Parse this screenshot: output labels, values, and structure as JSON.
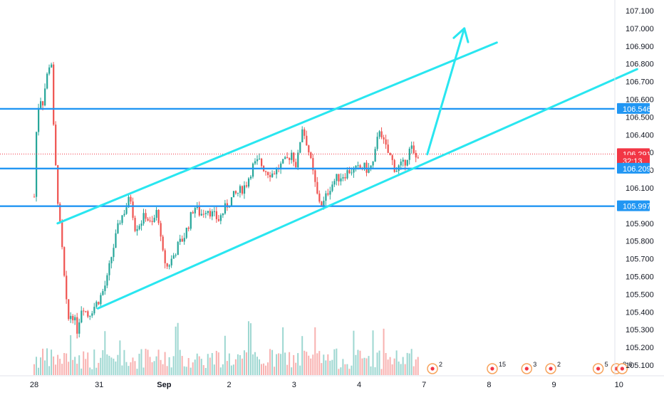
{
  "chart_data": {
    "type": "candlestick",
    "symbol_palette": {
      "up": "#26a69a",
      "down": "#ef5350",
      "level_line": "#2196f3",
      "channel_line": "#29e6f0",
      "current_price": "#f23645",
      "background": "#ffffff"
    },
    "y_axis": {
      "ylim": [
        105.04,
        107.16
      ],
      "ticks": [
        "107.100",
        "107.000",
        "106.900",
        "106.800",
        "106.700",
        "106.600",
        "106.500",
        "106.400",
        "106.300",
        "106.200",
        "106.100",
        "105.900",
        "105.800",
        "105.700",
        "105.600",
        "105.500",
        "105.400",
        "105.300",
        "105.200",
        "105.100"
      ]
    },
    "x_axis": {
      "labels": [
        {
          "text": "28",
          "day": 0
        },
        {
          "text": "31",
          "day": 1
        },
        {
          "text": "Sep",
          "day": 2
        },
        {
          "text": "2",
          "day": 3
        },
        {
          "text": "3",
          "day": 4
        },
        {
          "text": "4",
          "day": 5
        },
        {
          "text": "7",
          "day": 6
        },
        {
          "text": "8",
          "day": 7
        },
        {
          "text": "9",
          "day": 8
        },
        {
          "text": "10",
          "day": 9
        }
      ]
    },
    "price_tags": [
      {
        "label": "106.546",
        "price": 106.546,
        "kind": "level"
      },
      {
        "label": "106.291",
        "price": 106.291,
        "kind": "current"
      },
      {
        "label": "32:13",
        "price": 106.253,
        "kind": "countdown"
      },
      {
        "label": "106.209",
        "price": 106.209,
        "kind": "level"
      },
      {
        "label": "105.997",
        "price": 105.997,
        "kind": "level"
      }
    ],
    "horizontal_levels": [
      106.546,
      106.209,
      105.997
    ],
    "current_price": 106.291,
    "trend_lines": [
      {
        "name": "channel-top",
        "from": {
          "day": 0.36,
          "price": 105.9
        },
        "to": {
          "day": 7.12,
          "price": 106.92
        }
      },
      {
        "name": "channel-bottom",
        "from": {
          "day": 0.98,
          "price": 105.42
        },
        "to": {
          "day": 9.28,
          "price": 106.77
        }
      }
    ],
    "projection_arrow": {
      "from": {
        "day": 6.05,
        "price": 106.29
      },
      "to": {
        "day": 6.62,
        "price": 107.0
      }
    },
    "candles_key_points": [
      [
        0.0,
        106.05
      ],
      [
        0.02,
        106.35
      ],
      [
        0.05,
        106.5
      ],
      [
        0.08,
        106.62
      ],
      [
        0.13,
        106.58
      ],
      [
        0.18,
        106.7
      ],
      [
        0.26,
        106.85
      ],
      [
        0.3,
        106.4
      ],
      [
        0.34,
        106.15
      ],
      [
        0.38,
        105.95
      ],
      [
        0.44,
        105.7
      ],
      [
        0.48,
        105.5
      ],
      [
        0.52,
        105.35
      ],
      [
        0.58,
        105.4
      ],
      [
        0.66,
        105.3
      ],
      [
        0.74,
        105.45
      ],
      [
        0.82,
        105.38
      ],
      [
        0.9,
        105.42
      ],
      [
        0.96,
        105.45
      ],
      [
        1.04,
        105.5
      ],
      [
        1.12,
        105.58
      ],
      [
        1.18,
        105.7
      ],
      [
        1.24,
        105.8
      ],
      [
        1.32,
        105.92
      ],
      [
        1.4,
        105.98
      ],
      [
        1.48,
        106.05
      ],
      [
        1.55,
        105.88
      ],
      [
        1.62,
        105.9
      ],
      [
        1.72,
        105.95
      ],
      [
        1.8,
        105.88
      ],
      [
        1.9,
        105.98
      ],
      [
        1.96,
        105.75
      ],
      [
        2.04,
        105.65
      ],
      [
        2.12,
        105.7
      ],
      [
        2.22,
        105.78
      ],
      [
        2.3,
        105.82
      ],
      [
        2.38,
        105.9
      ],
      [
        2.46,
        106.0
      ],
      [
        2.56,
        105.95
      ],
      [
        2.66,
        105.99
      ],
      [
        2.74,
        105.95
      ],
      [
        2.84,
        105.92
      ],
      [
        2.96,
        106.0
      ],
      [
        3.06,
        106.05
      ],
      [
        3.16,
        106.08
      ],
      [
        3.26,
        106.12
      ],
      [
        3.36,
        106.22
      ],
      [
        3.46,
        106.25
      ],
      [
        3.56,
        106.2
      ],
      [
        3.66,
        106.18
      ],
      [
        3.78,
        106.22
      ],
      [
        3.88,
        106.25
      ],
      [
        3.96,
        106.3
      ],
      [
        4.04,
        106.22
      ],
      [
        4.12,
        106.45
      ],
      [
        4.2,
        106.35
      ],
      [
        4.28,
        106.2
      ],
      [
        4.36,
        106.05
      ],
      [
        4.44,
        106.0
      ],
      [
        4.54,
        106.1
      ],
      [
        4.64,
        106.15
      ],
      [
        4.74,
        106.17
      ],
      [
        4.86,
        106.2
      ],
      [
        4.96,
        106.2
      ],
      [
        5.06,
        106.22
      ],
      [
        5.14,
        106.2
      ],
      [
        5.22,
        106.24
      ],
      [
        5.32,
        106.45
      ],
      [
        5.38,
        106.35
      ],
      [
        5.44,
        106.3
      ],
      [
        5.5,
        106.26
      ],
      [
        5.56,
        106.2
      ],
      [
        5.62,
        106.22
      ],
      [
        5.68,
        106.23
      ],
      [
        5.74,
        106.28
      ],
      [
        5.8,
        106.33
      ],
      [
        5.86,
        106.26
      ],
      [
        5.92,
        106.3
      ]
    ],
    "event_markers": [
      {
        "day": 6.13,
        "count": "2"
      },
      {
        "day": 7.05,
        "count": "15"
      },
      {
        "day": 7.58,
        "count": "3"
      },
      {
        "day": 7.95,
        "count": "2"
      },
      {
        "day": 8.68,
        "count": "5"
      },
      {
        "day": 8.96,
        "count": "8"
      },
      {
        "day": 9.05,
        "count": "6"
      }
    ]
  }
}
